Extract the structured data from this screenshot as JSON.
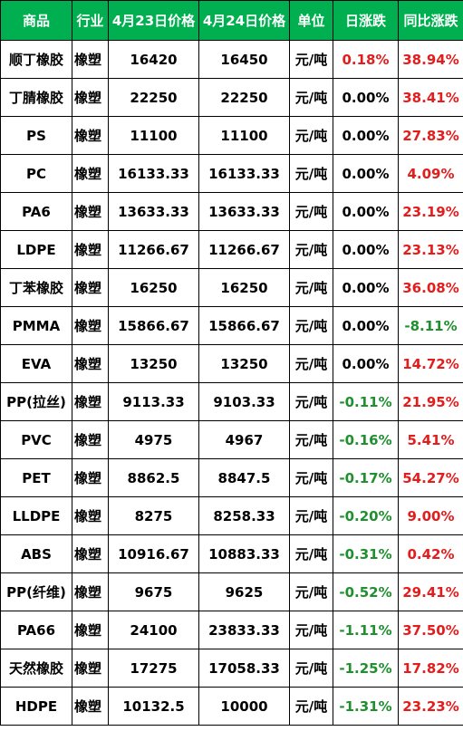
{
  "colors": {
    "header_bg": "#00b050",
    "header_text": "#ffffff",
    "up": "#e31c1c",
    "down": "#1f8f2f"
  },
  "headers": [
    "商品",
    "行业",
    "4月23日价格",
    "4月24日价格",
    "单位",
    "日涨跌",
    "同比涨跌"
  ],
  "rows": [
    {
      "name": "顺丁橡胶",
      "industry": "橡塑",
      "p1": "16420",
      "p2": "16450",
      "unit": "元/吨",
      "day": "0.18%",
      "yoy": "38.94%"
    },
    {
      "name": "丁腈橡胶",
      "industry": "橡塑",
      "p1": "22250",
      "p2": "22250",
      "unit": "元/吨",
      "day": "0.00%",
      "yoy": "38.41%"
    },
    {
      "name": "PS",
      "industry": "橡塑",
      "p1": "11100",
      "p2": "11100",
      "unit": "元/吨",
      "day": "0.00%",
      "yoy": "27.83%"
    },
    {
      "name": "PC",
      "industry": "橡塑",
      "p1": "16133.33",
      "p2": "16133.33",
      "unit": "元/吨",
      "day": "0.00%",
      "yoy": "4.09%"
    },
    {
      "name": "PA6",
      "industry": "橡塑",
      "p1": "13633.33",
      "p2": "13633.33",
      "unit": "元/吨",
      "day": "0.00%",
      "yoy": "23.19%"
    },
    {
      "name": "LDPE",
      "industry": "橡塑",
      "p1": "11266.67",
      "p2": "11266.67",
      "unit": "元/吨",
      "day": "0.00%",
      "yoy": "23.13%"
    },
    {
      "name": "丁苯橡胶",
      "industry": "橡塑",
      "p1": "16250",
      "p2": "16250",
      "unit": "元/吨",
      "day": "0.00%",
      "yoy": "36.08%"
    },
    {
      "name": "PMMA",
      "industry": "橡塑",
      "p1": "15866.67",
      "p2": "15866.67",
      "unit": "元/吨",
      "day": "0.00%",
      "yoy": "-8.11%"
    },
    {
      "name": "EVA",
      "industry": "橡塑",
      "p1": "13250",
      "p2": "13250",
      "unit": "元/吨",
      "day": "0.00%",
      "yoy": "14.72%"
    },
    {
      "name": "PP(拉丝)",
      "industry": "橡塑",
      "p1": "9113.33",
      "p2": "9103.33",
      "unit": "元/吨",
      "day": "-0.11%",
      "yoy": "21.95%"
    },
    {
      "name": "PVC",
      "industry": "橡塑",
      "p1": "4975",
      "p2": "4967",
      "unit": "元/吨",
      "day": "-0.16%",
      "yoy": "5.41%"
    },
    {
      "name": "PET",
      "industry": "橡塑",
      "p1": "8862.5",
      "p2": "8847.5",
      "unit": "元/吨",
      "day": "-0.17%",
      "yoy": "54.27%"
    },
    {
      "name": "LLDPE",
      "industry": "橡塑",
      "p1": "8275",
      "p2": "8258.33",
      "unit": "元/吨",
      "day": "-0.20%",
      "yoy": "9.00%"
    },
    {
      "name": "ABS",
      "industry": "橡塑",
      "p1": "10916.67",
      "p2": "10883.33",
      "unit": "元/吨",
      "day": "-0.31%",
      "yoy": "0.42%"
    },
    {
      "name": "PP(纤维)",
      "industry": "橡塑",
      "p1": "9675",
      "p2": "9625",
      "unit": "元/吨",
      "day": "-0.52%",
      "yoy": "29.41%"
    },
    {
      "name": "PA66",
      "industry": "橡塑",
      "p1": "24100",
      "p2": "23833.33",
      "unit": "元/吨",
      "day": "-1.11%",
      "yoy": "37.50%"
    },
    {
      "name": "天然橡胶",
      "industry": "橡塑",
      "p1": "17275",
      "p2": "17058.33",
      "unit": "元/吨",
      "day": "-1.25%",
      "yoy": "17.82%"
    },
    {
      "name": "HDPE",
      "industry": "橡塑",
      "p1": "10132.5",
      "p2": "10000",
      "unit": "元/吨",
      "day": "-1.31%",
      "yoy": "23.23%"
    }
  ]
}
